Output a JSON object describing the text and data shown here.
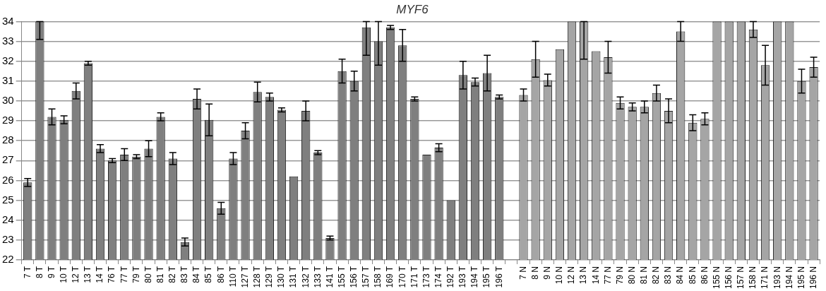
{
  "chart_data": {
    "type": "bar",
    "title": "MYF6",
    "categories": [
      "7 T",
      "8 T",
      "9 T",
      "10 T",
      "12 T",
      "13 T",
      "14 T",
      "76 T",
      "77 T",
      "79 T",
      "80 T",
      "81 T",
      "82 T",
      "83 T",
      "84 T",
      "85 T",
      "86 T",
      "110 T",
      "127 T",
      "128 T",
      "129 T",
      "130 T",
      "131 T",
      "132 T",
      "133 T",
      "141 T",
      "155 T",
      "156 T",
      "157 T",
      "158 T",
      "169 T",
      "170 T",
      "171 T",
      "173 T",
      "174 T",
      "192 T",
      "193 T",
      "194 T",
      "195 T",
      "196 T",
      null,
      "7 N",
      "8 N",
      "9 N",
      "10 N",
      "12 N",
      "13 N",
      "14 N",
      "77 N",
      "79 N",
      "80 N",
      "81 N",
      "82 N",
      "83 N",
      "84 N",
      "85 N",
      "86 N",
      "155 N",
      "156 N",
      "157 N",
      "158 N",
      "171 N",
      "193 N",
      "194 N",
      "195 N",
      "196 N"
    ],
    "values": [
      25.9,
      34,
      29.2,
      29.05,
      30.5,
      31.9,
      27.6,
      27.0,
      27.3,
      27.2,
      27.6,
      29.2,
      27.1,
      22.9,
      30.1,
      29.05,
      24.6,
      27.1,
      28.5,
      30.45,
      30.2,
      29.55,
      26.2,
      29.5,
      27.4,
      23.1,
      31.5,
      31.0,
      33.7,
      33.0,
      33.7,
      32.8,
      30.1,
      27.3,
      27.65,
      25.0,
      31.3,
      30.95,
      31.4,
      30.2,
      null,
      30.3,
      32.1,
      31.05,
      32.6,
      34,
      34,
      32.5,
      32.2,
      29.9,
      29.7,
      29.7,
      30.4,
      29.5,
      33.5,
      28.9,
      29.1,
      34,
      34,
      34,
      33.6,
      31.8,
      34,
      34,
      31.0,
      31.7
    ],
    "errors": [
      0.2,
      [
        33.1,
        34
      ],
      0.4,
      0.2,
      0.4,
      0.1,
      0.2,
      0.1,
      0.3,
      0.1,
      0.4,
      0.2,
      0.3,
      0.2,
      0.5,
      0.8,
      0.3,
      0.3,
      0.4,
      0.5,
      0.2,
      0.1,
      null,
      0.5,
      0.1,
      0.1,
      0.6,
      0.5,
      [
        32.3,
        34
      ],
      [
        31.8,
        34
      ],
      0.1,
      0.8,
      0.1,
      null,
      0.2,
      null,
      0.7,
      0.2,
      0.9,
      0.1,
      null,
      0.3,
      0.9,
      0.3,
      null,
      null,
      [
        32.1,
        34
      ],
      null,
      0.8,
      0.3,
      0.2,
      0.3,
      0.4,
      0.6,
      0.5,
      0.4,
      0.3,
      null,
      null,
      null,
      0.4,
      1.0,
      null,
      null,
      0.6,
      0.5
    ],
    "colors": [
      "#7f7f7f",
      "#7f7f7f",
      "#7f7f7f",
      "#7f7f7f",
      "#7f7f7f",
      "#7f7f7f",
      "#7f7f7f",
      "#7f7f7f",
      "#7f7f7f",
      "#7f7f7f",
      "#7f7f7f",
      "#7f7f7f",
      "#7f7f7f",
      "#7f7f7f",
      "#7f7f7f",
      "#7f7f7f",
      "#7f7f7f",
      "#7f7f7f",
      "#7f7f7f",
      "#7f7f7f",
      "#7f7f7f",
      "#7f7f7f",
      "#7f7f7f",
      "#7f7f7f",
      "#7f7f7f",
      "#7f7f7f",
      "#7f7f7f",
      "#7f7f7f",
      "#7f7f7f",
      "#7f7f7f",
      "#7f7f7f",
      "#7f7f7f",
      "#7f7f7f",
      "#7f7f7f",
      "#7f7f7f",
      "#7f7f7f",
      "#7f7f7f",
      "#7f7f7f",
      "#7f7f7f",
      "#7f7f7f",
      null,
      "#a5a5a5",
      "#a5a5a5",
      "#a5a5a5",
      "#a5a5a5",
      "#a5a5a5",
      "#a5a5a5",
      "#a5a5a5",
      "#a5a5a5",
      "#a5a5a5",
      "#a5a5a5",
      "#a5a5a5",
      "#a5a5a5",
      "#a5a5a5",
      "#a5a5a5",
      "#a5a5a5",
      "#a5a5a5",
      "#a5a5a5",
      "#a5a5a5",
      "#a5a5a5",
      "#a5a5a5",
      "#a5a5a5",
      "#a5a5a5",
      "#a5a5a5",
      "#a5a5a5",
      "#a5a5a5"
    ],
    "ylim": [
      22,
      34
    ],
    "yticks": [
      22,
      23,
      24,
      25,
      26,
      27,
      28,
      29,
      30,
      31,
      32,
      33,
      34
    ],
    "grid": "y",
    "legend": false
  }
}
